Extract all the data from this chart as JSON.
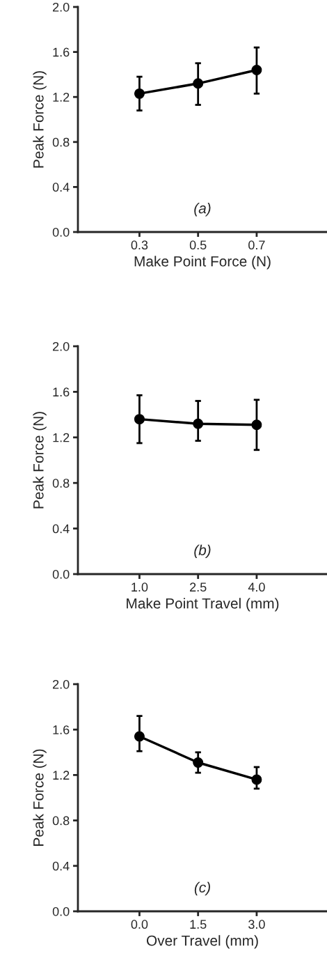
{
  "chart_data": [
    {
      "type": "line",
      "xlabel": "Make Point Force (N)",
      "ylabel": "Peak Force (N)",
      "annotations": [
        "(a)"
      ],
      "categories": [
        "0.3",
        "0.5",
        "0.7"
      ],
      "series": [
        {
          "color": "#000000",
          "values": [
            1.23,
            1.32,
            1.44
          ],
          "errors": [
            [
              1.08,
              1.38
            ],
            [
              1.13,
              1.5
            ],
            [
              1.23,
              1.64
            ]
          ]
        }
      ],
      "ylim": [
        0,
        2
      ],
      "yticks": [
        {
          "value": 0,
          "label": "0.0"
        },
        {
          "value": 0.4,
          "label": "0.4"
        },
        {
          "value": 0.8,
          "label": "0.8"
        },
        {
          "value": 1.2,
          "label": "1.2"
        },
        {
          "value": 1.6,
          "label": "1.6"
        },
        {
          "value": 2,
          "label": "2.0"
        }
      ],
      "grid": false,
      "marker": "circle",
      "line_style": "solid"
    },
    {
      "type": "line",
      "xlabel": "Make Point Travel (mm)",
      "ylabel": "Peak Force (N)",
      "annotations": [
        "(b)"
      ],
      "categories": [
        "1.0",
        "2.5",
        "4.0"
      ],
      "series": [
        {
          "color": "#000000",
          "values": [
            1.36,
            1.32,
            1.31
          ],
          "errors": [
            [
              1.15,
              1.57
            ],
            [
              1.17,
              1.52
            ],
            [
              1.09,
              1.53
            ]
          ]
        }
      ],
      "ylim": [
        0,
        2
      ],
      "yticks": [
        {
          "value": 0,
          "label": "0.0"
        },
        {
          "value": 0.4,
          "label": "0.4"
        },
        {
          "value": 0.8,
          "label": "0.8"
        },
        {
          "value": 1.2,
          "label": "1.2"
        },
        {
          "value": 1.6,
          "label": "1.6"
        },
        {
          "value": 2,
          "label": "2.0"
        }
      ],
      "grid": false,
      "marker": "circle",
      "line_style": "solid"
    },
    {
      "type": "line",
      "xlabel": "Over Travel (mm)",
      "ylabel": "Peak Force (N)",
      "annotations": [
        "(c)"
      ],
      "categories": [
        "0.0",
        "1.5",
        "3.0"
      ],
      "series": [
        {
          "color": "#000000",
          "values": [
            1.54,
            1.31,
            1.16
          ],
          "errors": [
            [
              1.41,
              1.72
            ],
            [
              1.22,
              1.4
            ],
            [
              1.08,
              1.27
            ]
          ]
        }
      ],
      "ylim": [
        0,
        2
      ],
      "yticks": [
        {
          "value": 0,
          "label": "0.0"
        },
        {
          "value": 0.4,
          "label": "0.4"
        },
        {
          "value": 0.8,
          "label": "0.8"
        },
        {
          "value": 1.2,
          "label": "1.2"
        },
        {
          "value": 1.6,
          "label": "1.6"
        },
        {
          "value": 2,
          "label": "2.0"
        }
      ],
      "grid": false,
      "marker": "circle",
      "line_style": "solid"
    }
  ]
}
